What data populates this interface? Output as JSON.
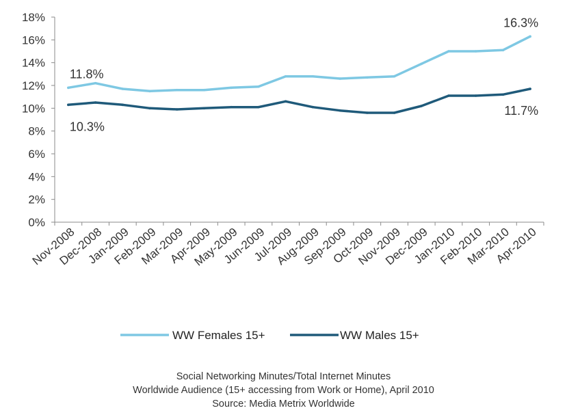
{
  "chart_data": {
    "type": "line",
    "categories": [
      "Nov-2008",
      "Dec-2008",
      "Jan-2009",
      "Feb-2009",
      "Mar-2009",
      "Apr-2009",
      "May-2009",
      "Jun-2009",
      "Jul-2009",
      "Aug-2009",
      "Sep-2009",
      "Oct-2009",
      "Nov-2009",
      "Dec-2009",
      "Jan-2010",
      "Feb-2010",
      "Mar-2010",
      "Apr-2010"
    ],
    "series": [
      {
        "name": "WW Females 15+",
        "color": "#7ec8e3",
        "values": [
          11.8,
          12.2,
          11.7,
          11.5,
          11.6,
          11.6,
          11.8,
          11.9,
          12.8,
          12.8,
          12.6,
          12.7,
          12.8,
          13.9,
          15.0,
          15.0,
          15.1,
          16.3
        ]
      },
      {
        "name": "WW Males 15+",
        "color": "#1f5a7a",
        "values": [
          10.3,
          10.5,
          10.3,
          10.0,
          9.9,
          10.0,
          10.1,
          10.1,
          10.6,
          10.1,
          9.8,
          9.6,
          9.6,
          10.2,
          11.1,
          11.1,
          11.2,
          11.7
        ]
      }
    ],
    "y_ticks": [
      "0%",
      "2%",
      "4%",
      "6%",
      "8%",
      "10%",
      "12%",
      "14%",
      "16%",
      "18%"
    ],
    "ylim": [
      0,
      18
    ],
    "grid": false,
    "legend_position": "bottom",
    "annotations": [
      "11.8%",
      "10.3%",
      "16.3%",
      "11.7%"
    ]
  },
  "caption": {
    "line1": "Social Networking Minutes/Total Internet Minutes",
    "line2": "Worldwide Audience (15+ accessing from Work or Home), April 2010",
    "line3": "Source: Media Metrix Worldwide"
  }
}
